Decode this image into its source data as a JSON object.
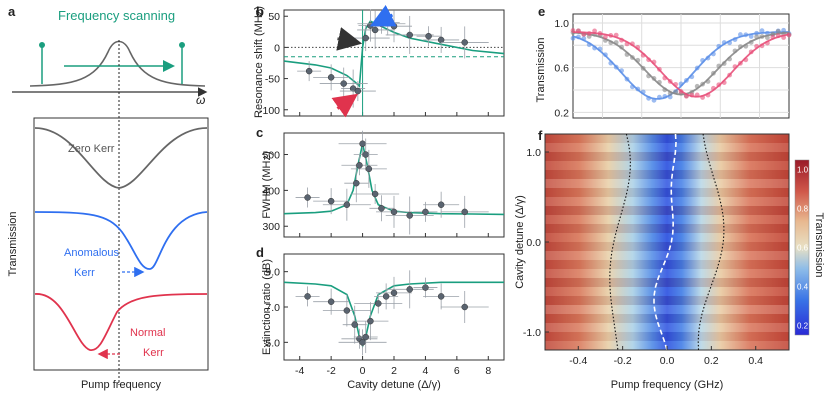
{
  "colors": {
    "teal": "#1a9e7f",
    "gray": "#666666",
    "blue": "#2f6ff0",
    "red": "#e0334d",
    "pink": "#e8507a",
    "lblue": "#5b8fe8",
    "marker": "#5a6470"
  },
  "panel_a": {
    "label": "a",
    "scan_label": "Frequency scanning",
    "omega": "ω",
    "zero_kerr": "Zero Kerr",
    "anomalous_kerr_1": "Anomalous",
    "anomalous_kerr_2": "Kerr",
    "normal_kerr_1": "Normal",
    "normal_kerr_2": "Kerr",
    "ylabel": "Transmission",
    "xlabel": "Pump frequency"
  },
  "chart_data": [
    {
      "id": "b",
      "type": "scatter",
      "ylabel": "Resonance shift (MHz)",
      "xlim": [
        -5,
        9
      ],
      "ylim": [
        -110,
        60
      ],
      "yticks": [
        "50",
        "0",
        "-50",
        "-100"
      ],
      "points": [
        [
          -3.4,
          -38
        ],
        [
          -2.0,
          -48
        ],
        [
          -1.2,
          -58
        ],
        [
          -0.6,
          -66
        ],
        [
          -0.3,
          -70
        ],
        [
          0.2,
          15
        ],
        [
          0.5,
          35
        ],
        [
          0.8,
          28
        ],
        [
          1.2,
          38
        ],
        [
          1.6,
          40
        ],
        [
          2.0,
          34
        ],
        [
          3.0,
          20
        ],
        [
          4.2,
          18
        ],
        [
          5.0,
          12
        ],
        [
          6.5,
          8
        ]
      ],
      "fit_x": [
        -5,
        -3,
        -2,
        -1,
        -0.5,
        -0.2,
        0,
        0.2,
        0.5,
        1,
        2,
        3,
        5,
        7,
        9
      ],
      "fit_y": [
        -22,
        -28,
        -33,
        -45,
        -55,
        -62,
        0,
        30,
        42,
        36,
        24,
        15,
        5,
        -5,
        -10
      ],
      "dotted_level": 0,
      "dashed_level": -15,
      "arrows": [
        "blue",
        "gray",
        "red"
      ]
    },
    {
      "id": "c",
      "type": "scatter",
      "ylabel": "FWHM (MHz)",
      "xlim": [
        -5,
        9
      ],
      "ylim": [
        270,
        560
      ],
      "yticks": [
        "500",
        "400",
        "300"
      ],
      "points": [
        [
          -3.5,
          380
        ],
        [
          -2.0,
          370
        ],
        [
          -1.0,
          360
        ],
        [
          -0.4,
          420
        ],
        [
          -0.2,
          470
        ],
        [
          0,
          530
        ],
        [
          0.2,
          500
        ],
        [
          0.4,
          460
        ],
        [
          0.8,
          390
        ],
        [
          1.2,
          350
        ],
        [
          2.0,
          340
        ],
        [
          3.0,
          330
        ],
        [
          4.0,
          340
        ],
        [
          5.0,
          360
        ],
        [
          6.5,
          340
        ]
      ],
      "fit_x": [
        -5,
        -3,
        -2,
        -1,
        -0.6,
        -0.3,
        0,
        0.3,
        0.6,
        1,
        2,
        3,
        5,
        7,
        9
      ],
      "fit_y": [
        335,
        338,
        342,
        360,
        400,
        470,
        530,
        470,
        400,
        360,
        342,
        338,
        335,
        334,
        333
      ]
    },
    {
      "id": "d",
      "type": "scatter",
      "ylabel": "Extinction ratio (dB)",
      "xlabel": "Cavity detune (Δ/γ)",
      "xlim": [
        -5,
        9
      ],
      "ylim": [
        4,
        10
      ],
      "yticks": [
        "9.0",
        "7.0",
        "5.0"
      ],
      "xticks": [
        "-4",
        "-2",
        "0",
        "2",
        "4",
        "6",
        "8"
      ],
      "points": [
        [
          -3.5,
          7.6
        ],
        [
          -2.0,
          7.3
        ],
        [
          -1.0,
          6.8
        ],
        [
          -0.5,
          6.0
        ],
        [
          -0.2,
          5.2
        ],
        [
          0,
          5.0
        ],
        [
          0.2,
          5.3
        ],
        [
          0.5,
          6.2
        ],
        [
          1.0,
          7.2
        ],
        [
          1.5,
          7.6
        ],
        [
          2.0,
          7.8
        ],
        [
          3.0,
          8.0
        ],
        [
          4.0,
          8.1
        ],
        [
          5.0,
          7.6
        ],
        [
          6.5,
          7.0
        ]
      ],
      "fit_x": [
        -5,
        -3,
        -2,
        -1,
        -0.5,
        -0.2,
        0,
        0.2,
        0.5,
        1,
        2,
        3,
        5,
        7,
        9
      ],
      "fit_y": [
        8.4,
        8.3,
        8.2,
        7.7,
        6.5,
        5.3,
        4.8,
        5.3,
        6.5,
        7.7,
        8.2,
        8.3,
        8.4,
        8.4,
        8.4
      ]
    },
    {
      "id": "e",
      "type": "line",
      "ylabel": "Transmission",
      "xlim": [
        -0.55,
        0.55
      ],
      "ylim": [
        0.15,
        1.08
      ],
      "yticks": [
        "1.0",
        "0.6",
        "0.2"
      ],
      "series": [
        {
          "name": "blue",
          "min_x": -0.12,
          "min_y": 0.32
        },
        {
          "name": "gray",
          "min_x": 0.0,
          "min_y": 0.36
        },
        {
          "name": "pink",
          "min_x": 0.08,
          "min_y": 0.34
        }
      ]
    },
    {
      "id": "f",
      "type": "heatmap",
      "xlabel": "Pump frequency (GHz)",
      "ylabel": "Cavity detune (Δ/γ)",
      "xlim": [
        -0.55,
        0.55
      ],
      "ylim": [
        -1.2,
        1.2
      ],
      "xticks": [
        "-0.4",
        "-0.2",
        "0.0",
        "0.2",
        "0.4"
      ],
      "yticks": [
        "1.0",
        "0.0",
        "-1.0"
      ],
      "colorbar_label": "Transmission",
      "colorbar_ticks": [
        "1.0",
        "0.8",
        "0.6",
        "0.4",
        "0.2"
      ],
      "colorbar_range": [
        0.15,
        1.05
      ]
    }
  ]
}
